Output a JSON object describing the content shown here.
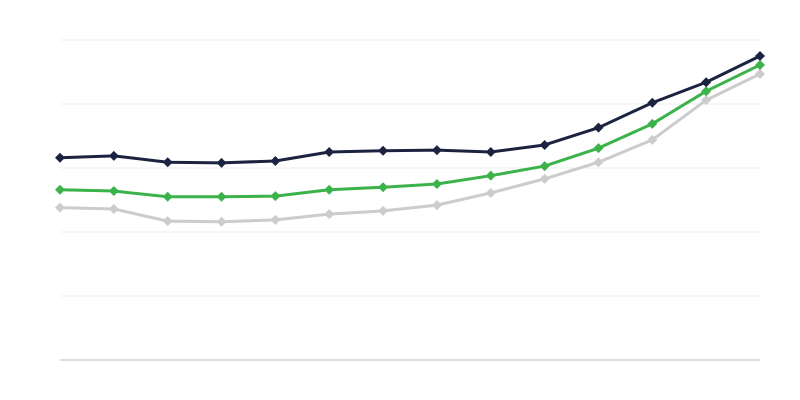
{
  "chart_data": {
    "type": "line",
    "title": "",
    "xlabel": "",
    "ylabel": "",
    "x": [
      1,
      2,
      3,
      4,
      5,
      6,
      7,
      8,
      9,
      10,
      11,
      12,
      13,
      14
    ],
    "ylim": [
      0,
      5
    ],
    "yticks": [
      0,
      1,
      2,
      3,
      4,
      5
    ],
    "grid": true,
    "tick_labels_shown": false,
    "legend": "none",
    "marker": "diamond",
    "series": [
      {
        "color": "#1b2340",
        "values": [
          3.16,
          3.19,
          3.09,
          3.08,
          3.11,
          3.25,
          3.27,
          3.28,
          3.25,
          3.36,
          3.63,
          4.02,
          4.34,
          4.75
        ]
      },
      {
        "color": "#3cb24a",
        "values": [
          2.66,
          2.64,
          2.55,
          2.55,
          2.56,
          2.66,
          2.7,
          2.75,
          2.88,
          3.03,
          3.31,
          3.69,
          4.2,
          4.61
        ]
      },
      {
        "color": "#cccccc",
        "values": [
          2.38,
          2.36,
          2.17,
          2.16,
          2.19,
          2.28,
          2.33,
          2.42,
          2.61,
          2.83,
          3.09,
          3.44,
          4.06,
          4.47
        ]
      }
    ],
    "colors": {
      "grid": "#eeeeee",
      "baseline": "#bbbbbb"
    }
  }
}
